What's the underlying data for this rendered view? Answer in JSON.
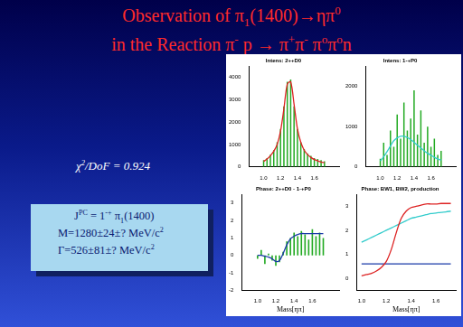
{
  "slide": {
    "title": [
      {
        "text": "Observation of π"
      },
      {
        "sub": "1"
      },
      {
        "text": "(1400)→ηπ"
      },
      {
        "sup": "0"
      }
    ],
    "subtitle": [
      {
        "text": "in the  Reaction π"
      },
      {
        "sup": "-"
      },
      {
        "text": " p → π"
      },
      {
        "sup": "+"
      },
      {
        "text": "π"
      },
      {
        "sup": "-"
      },
      {
        "text": " π"
      },
      {
        "sup": "o"
      },
      {
        "text": "π"
      },
      {
        "sup": "o"
      },
      {
        "text": "n"
      }
    ],
    "fit": [
      {
        "text": "χ"
      },
      {
        "sup": "2"
      },
      {
        "text": "/DoF = 0.924"
      }
    ],
    "box": [
      [
        {
          "text": "J"
        },
        {
          "sup": "PC"
        },
        {
          "text": " = 1"
        },
        {
          "sup": "-+"
        },
        {
          "text": " π"
        },
        {
          "sub": "1"
        },
        {
          "text": "(1400)"
        }
      ],
      [
        {
          "text": "M=1280±24±? MeV/c"
        },
        {
          "sup": "2"
        }
      ],
      [
        {
          "text": "Γ=526±81±? MeV/c"
        },
        {
          "sup": "2"
        }
      ]
    ]
  },
  "chart_data": [
    {
      "type": "line",
      "title": "Intens: 2++D0",
      "grid": false,
      "x": [
        1.0,
        1.04,
        1.08,
        1.12,
        1.16,
        1.2,
        1.24,
        1.28,
        1.32,
        1.36,
        1.4,
        1.44,
        1.48,
        1.52,
        1.56,
        1.6,
        1.64,
        1.68,
        1.72
      ],
      "xlim": [
        0.96,
        1.76
      ],
      "xticks": [
        {
          "value": 1,
          "label": "1.0"
        },
        1.2,
        1.4,
        1.6
      ],
      "ylim": [
        0,
        4500
      ],
      "yticks": [
        0,
        1000,
        2000,
        3000,
        4000
      ],
      "series": [
        {
          "type": "bar",
          "color": "#22aa22",
          "values": [
            300,
            400,
            550,
            750,
            1100,
            1700,
            2700,
            3800,
            3900,
            2700,
            1700,
            1100,
            800,
            600,
            500,
            400,
            350,
            300,
            250
          ]
        },
        {
          "type": "line",
          "color": "#dd2222",
          "values": [
            250,
            350,
            500,
            700,
            1000,
            1600,
            2600,
            3700,
            3800,
            2800,
            1700,
            1100,
            750,
            550,
            420,
            330,
            270,
            220,
            190
          ]
        }
      ]
    },
    {
      "type": "line",
      "title": "Intens: 1-+P0",
      "grid": false,
      "x": [
        1.0,
        1.04,
        1.08,
        1.12,
        1.16,
        1.2,
        1.24,
        1.28,
        1.32,
        1.36,
        1.4,
        1.44,
        1.48,
        1.52,
        1.56,
        1.6,
        1.64,
        1.68,
        1.72
      ],
      "xlim": [
        0.96,
        1.76
      ],
      "xticks": [
        {
          "value": 1,
          "label": "1.0"
        },
        1.2,
        1.4,
        1.6
      ],
      "ylim": [
        0,
        2500
      ],
      "yticks": [
        0,
        1000,
        2000
      ],
      "series": [
        {
          "type": "bar",
          "color": "#22aa22",
          "values": [
            200,
            600,
            300,
            900,
            500,
            1300,
            700,
            1600,
            900,
            1200,
            1900,
            800,
            1400,
            600,
            1000,
            500,
            700,
            300,
            400
          ]
        },
        {
          "type": "line",
          "color": "#33cccc",
          "values": [
            150,
            250,
            380,
            520,
            650,
            720,
            760,
            760,
            730,
            680,
            610,
            540,
            470,
            400,
            340,
            290,
            240,
            200,
            170
          ]
        }
      ]
    },
    {
      "type": "line",
      "title": "Phase: 2++D0 - 1-+P0",
      "x_label": "Mass[ηπ]",
      "grid": false,
      "x": [
        1.0,
        1.04,
        1.08,
        1.12,
        1.16,
        1.2,
        1.24,
        1.28,
        1.32,
        1.36,
        1.4,
        1.44,
        1.48,
        1.52,
        1.56,
        1.6,
        1.64,
        1.68,
        1.72
      ],
      "xlim": [
        0.96,
        1.76
      ],
      "xticks": [
        {
          "value": 1,
          "label": "1.0"
        },
        1.2,
        1.4,
        1.6
      ],
      "ylim": [
        -2,
        3.5
      ],
      "yticks": [
        -2,
        -1,
        0,
        1,
        2,
        3
      ],
      "series": [
        {
          "type": "bar",
          "color": "#22aa22",
          "values": [
            -0.2,
            0.3,
            -0.5,
            0.1,
            -0.3,
            -0.6,
            -0.4,
            0.2,
            0.8,
            1.0,
            1.3,
            1.1,
            1.4,
            1.2,
            0.9,
            1.5,
            1.1,
            1.3,
            1.0
          ]
        },
        {
          "type": "line",
          "color": "#1a3aa8",
          "values": [
            0,
            0,
            -0.05,
            -0.1,
            -0.2,
            -0.35,
            -0.3,
            0.1,
            0.6,
            0.95,
            1.1,
            1.2,
            1.25,
            1.25,
            1.25,
            1.25,
            1.25,
            1.25,
            1.25
          ]
        }
      ]
    },
    {
      "type": "line",
      "title": "Phase: BW1, BW2, production",
      "x_label": "Mass[ηπ]",
      "grid": false,
      "x": [
        1.0,
        1.04,
        1.08,
        1.12,
        1.16,
        1.2,
        1.24,
        1.28,
        1.32,
        1.36,
        1.4,
        1.44,
        1.48,
        1.52,
        1.56,
        1.6,
        1.64,
        1.68,
        1.72
      ],
      "xlim": [
        0.96,
        1.76
      ],
      "xticks": [
        {
          "value": 1,
          "label": "1.0"
        },
        1.2,
        1.4,
        1.6
      ],
      "ylim": [
        -0.5,
        3.5
      ],
      "yticks": [
        0,
        1,
        2,
        3
      ],
      "series": [
        {
          "type": "line",
          "color": "#dd2222",
          "values": [
            0.1,
            0.15,
            0.2,
            0.3,
            0.45,
            0.7,
            1.2,
            1.9,
            2.5,
            2.8,
            2.95,
            3.0,
            3.05,
            3.1,
            3.1,
            3.1,
            3.12,
            3.12,
            3.12
          ]
        },
        {
          "type": "line",
          "color": "#33cccc",
          "values": [
            1.5,
            1.6,
            1.7,
            1.8,
            1.9,
            2.0,
            2.1,
            2.2,
            2.3,
            2.4,
            2.5,
            2.55,
            2.6,
            2.65,
            2.7,
            2.72,
            2.75,
            2.77,
            2.8
          ]
        },
        {
          "type": "line",
          "color": "#1a3aa8",
          "values": [
            0.6,
            0.6,
            0.6,
            0.6,
            0.6,
            0.6,
            0.6,
            0.6,
            0.6,
            0.6,
            0.6,
            0.6,
            0.6,
            0.6,
            0.6,
            0.6,
            0.6,
            0.6,
            0.6
          ]
        }
      ]
    }
  ]
}
